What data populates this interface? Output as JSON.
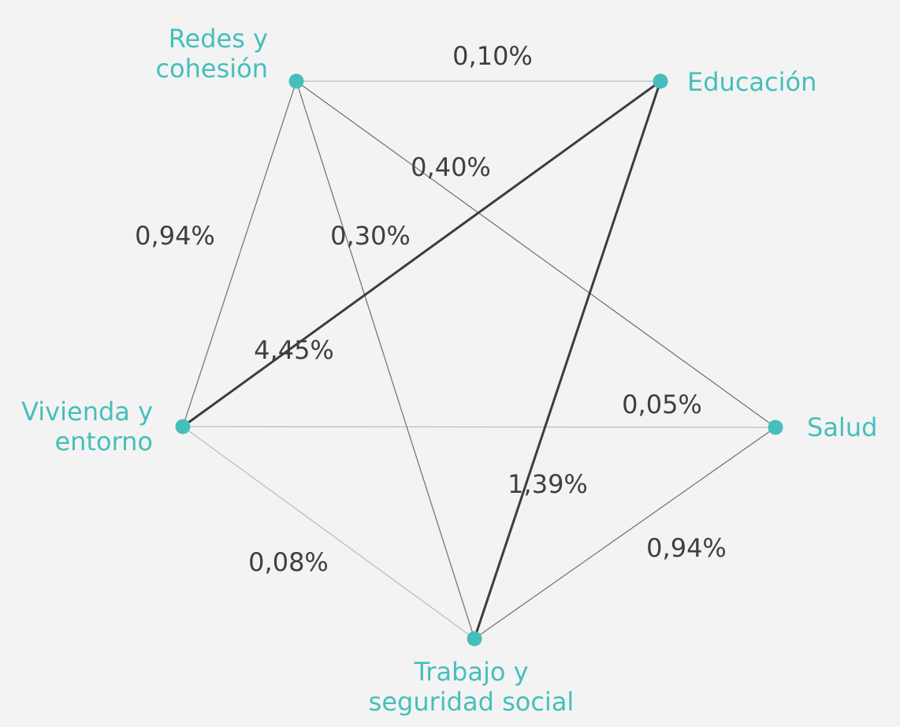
{
  "colors": {
    "background": "#f3f3f3",
    "node": "#45bfbb",
    "node_label": "#45bfbb",
    "edge_label": "#3f3f3f"
  },
  "nodes": [
    {
      "id": "redes",
      "lines": [
        "Redes y",
        "cohesión"
      ]
    },
    {
      "id": "educacion",
      "lines": [
        "Educación"
      ]
    },
    {
      "id": "vivienda",
      "lines": [
        "Vivienda y",
        "entorno"
      ]
    },
    {
      "id": "salud",
      "lines": [
        "Salud"
      ]
    },
    {
      "id": "trabajo",
      "lines": [
        "Trabajo y",
        "seguridad social"
      ]
    }
  ],
  "edges": [
    {
      "from": "redes",
      "to": "educacion",
      "value": "0,10%",
      "weight": "light"
    },
    {
      "from": "redes",
      "to": "salud",
      "value": "0,40%",
      "weight": "medium"
    },
    {
      "from": "redes",
      "to": "vivienda",
      "value": "0,94%",
      "weight": "medium"
    },
    {
      "from": "redes",
      "to": "trabajo",
      "value": "0,30%",
      "weight": "medium"
    },
    {
      "from": "educacion",
      "to": "vivienda",
      "value": "4,45%",
      "weight": "heavy"
    },
    {
      "from": "educacion",
      "to": "trabajo",
      "value": "1,39%",
      "weight": "heavy"
    },
    {
      "from": "vivienda",
      "to": "salud",
      "value": "0,05%",
      "weight": "light"
    },
    {
      "from": "vivienda",
      "to": "trabajo",
      "value": "0,08%",
      "weight": "light"
    },
    {
      "from": "salud",
      "to": "trabajo",
      "value": "0,94%",
      "weight": "medium"
    }
  ]
}
